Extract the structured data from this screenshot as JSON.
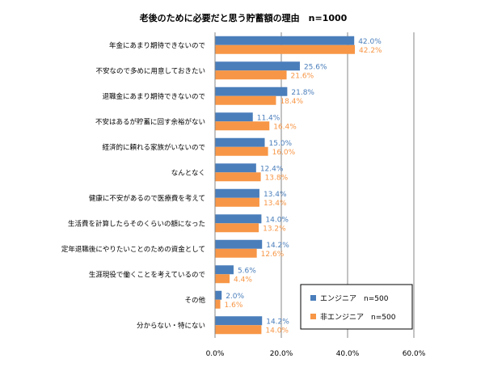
{
  "chart_data": {
    "type": "bar",
    "orientation": "horizontal",
    "title": "老後のために必要だと思う貯蓄額の理由　n=1000",
    "categories": [
      "年金にあまり期待できないので",
      "不安なので多めに用意しておきたい",
      "退職金にあまり期待できないので",
      "不安はあるが貯蓄に回す余裕がない",
      "経済的に頼れる家族がいないので",
      "なんとなく",
      "健康に不安があるので医療費を考えて",
      "生活費を計算したらそのくらいの額になった",
      "定年退職後にやりたいことのための資金として",
      "生涯現役で働くことを考えているので",
      "その他",
      "分からない・特にない"
    ],
    "series": [
      {
        "name": "エンジニア　n=500",
        "color": "#4a7ebb",
        "values": [
          42.0,
          25.6,
          21.8,
          11.4,
          15.0,
          12.4,
          13.4,
          14.0,
          14.2,
          5.6,
          2.0,
          14.2
        ],
        "labels": [
          "42.0%",
          "25.6%",
          "21.8%",
          "11.4%",
          "15.0%",
          "12.4%",
          "13.4%",
          "14.0%",
          "14.2%",
          "5.6%",
          "2.0%",
          "14.2%"
        ]
      },
      {
        "name": "非エンジニア　n=500",
        "color": "#f79646",
        "values": [
          42.2,
          21.6,
          18.4,
          16.4,
          16.0,
          13.8,
          13.4,
          13.2,
          12.6,
          4.4,
          1.6,
          14.0
        ],
        "labels": [
          "42.2%",
          "21.6%",
          "18.4%",
          "16.4%",
          "16.0%",
          "13.8%",
          "13.4%",
          "13.2%",
          "12.6%",
          "4.4%",
          "1.6%",
          "14.0%"
        ]
      }
    ],
    "xlim": [
      0,
      60
    ],
    "xticks": [
      0,
      20,
      40,
      60
    ],
    "xtick_labels": [
      "0.0%",
      "20.0%",
      "40.0%",
      "60.0%"
    ],
    "grid": true,
    "legend_position": "bottom-right"
  }
}
